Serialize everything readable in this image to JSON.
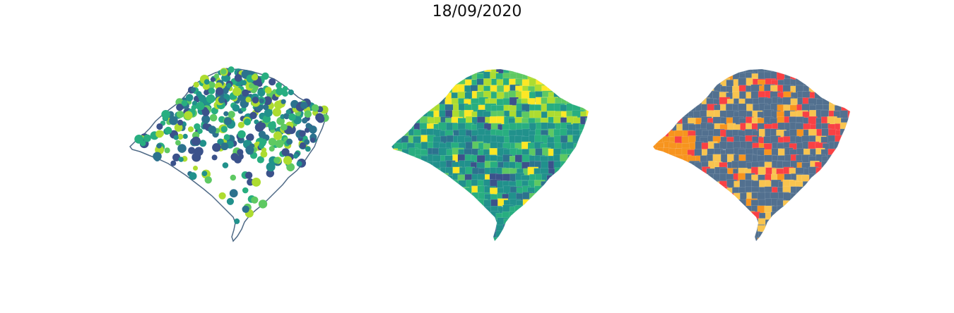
{
  "title": "18/09/2020",
  "panels": [
    {
      "id": "points",
      "kind": "proportional-points"
    },
    {
      "id": "choropleth-viridis",
      "kind": "choropleth"
    },
    {
      "id": "choropleth-categorical",
      "kind": "choropleth"
    }
  ],
  "colors": {
    "outline": "#4f6a86",
    "viridis": [
      "#440154",
      "#3b528b",
      "#2c728e",
      "#21918c",
      "#28ae80",
      "#5ec962",
      "#addc30",
      "#fde725"
    ],
    "categorical": [
      "#52708f",
      "#f94144",
      "#f8c44f",
      "#f7941e"
    ]
  }
}
